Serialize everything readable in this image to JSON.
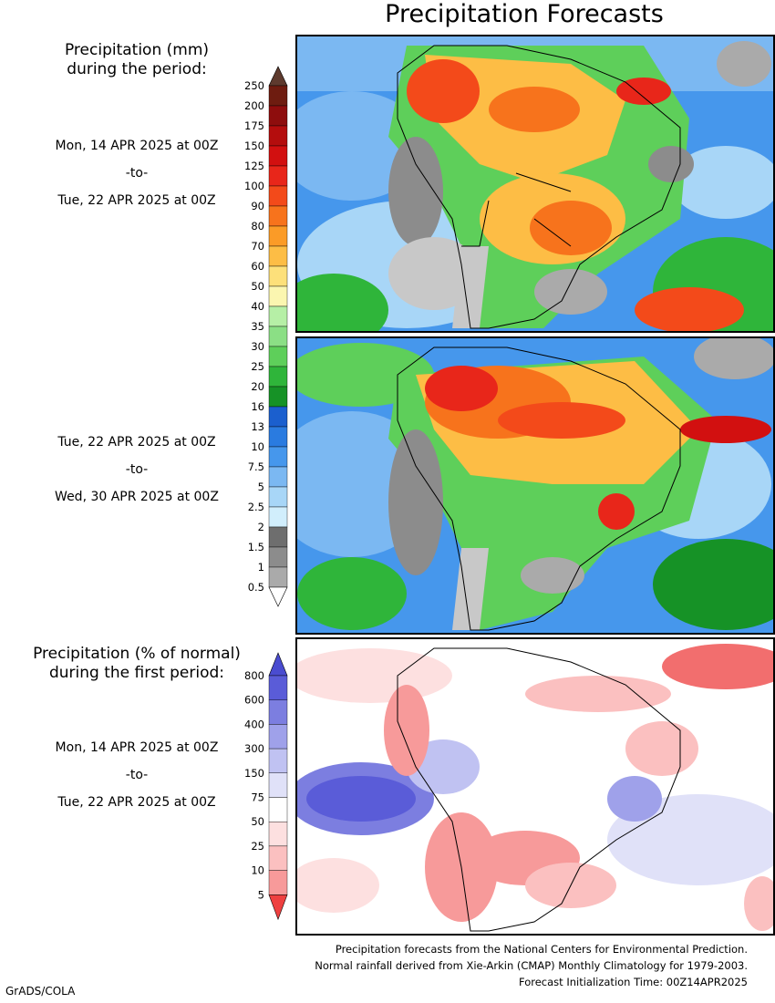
{
  "title": "Precipitation Forecasts",
  "amount_legend": {
    "header_line1": "Precipitation (mm)",
    "header_line2": "during the period:",
    "levels": [
      "250",
      "200",
      "175",
      "150",
      "125",
      "100",
      "90",
      "80",
      "70",
      "60",
      "50",
      "40",
      "35",
      "30",
      "25",
      "20",
      "16",
      "13",
      "10",
      "7.5",
      "5",
      "2.5",
      "2",
      "1.5",
      "1",
      "0.5"
    ],
    "colors": [
      "#6e1c10",
      "#8e0d0d",
      "#b40d0d",
      "#d21010",
      "#e8261a",
      "#f34a1a",
      "#f7731c",
      "#fb9b27",
      "#fdbd45",
      "#fde07a",
      "#fbf6b0",
      "#b6efa6",
      "#8bdf85",
      "#5ecf5a",
      "#2fb53a",
      "#169226",
      "#1b5fce",
      "#2a7be0",
      "#4697ec",
      "#7bb8f2",
      "#a8d6f7",
      "#d1eefc",
      "#6e6e6e",
      "#8c8c8c",
      "#aaaaaa",
      "#c8c8c8"
    ],
    "arrow_top_color": "#5e3a2e"
  },
  "period1": {
    "from": "Mon, 14 APR 2025 at 00Z",
    "sep": "-to-",
    "to": "Tue, 22 APR 2025 at 00Z"
  },
  "period2": {
    "from": "Tue, 22 APR 2025 at 00Z",
    "sep": "-to-",
    "to": "Wed, 30 APR 2025 at 00Z"
  },
  "percent_legend": {
    "header_line1": "Precipitation (% of normal)",
    "header_line2": "during the first period:",
    "levels": [
      "800",
      "600",
      "400",
      "300",
      "150",
      "75",
      "50",
      "25",
      "10",
      "5"
    ],
    "colors": [
      "#5a5cd8",
      "#7c7ee0",
      "#9fa1ea",
      "#c0c2f2",
      "#e0e1f8",
      "#ffffff",
      "#fde0e0",
      "#fbc0c0",
      "#f79a9a",
      "#f26e6e"
    ],
    "arrow_top_color": "#4a4cd0",
    "arrow_bottom_color": "#ee4040"
  },
  "period3": {
    "from": "Mon, 14 APR 2025 at 00Z",
    "sep": "-to-",
    "to": "Tue, 22 APR 2025 at 00Z"
  },
  "footer": {
    "line1": "Precipitation forecasts from the National Centers for Environmental Prediction.",
    "line2": "Normal rainfall derived from Xie-Arkin (CMAP) Monthly Climatology for 1979-2003.",
    "line3": "Forecast Initialization Time: 00Z14APR2025"
  },
  "credit": "GrADS/COLA"
}
